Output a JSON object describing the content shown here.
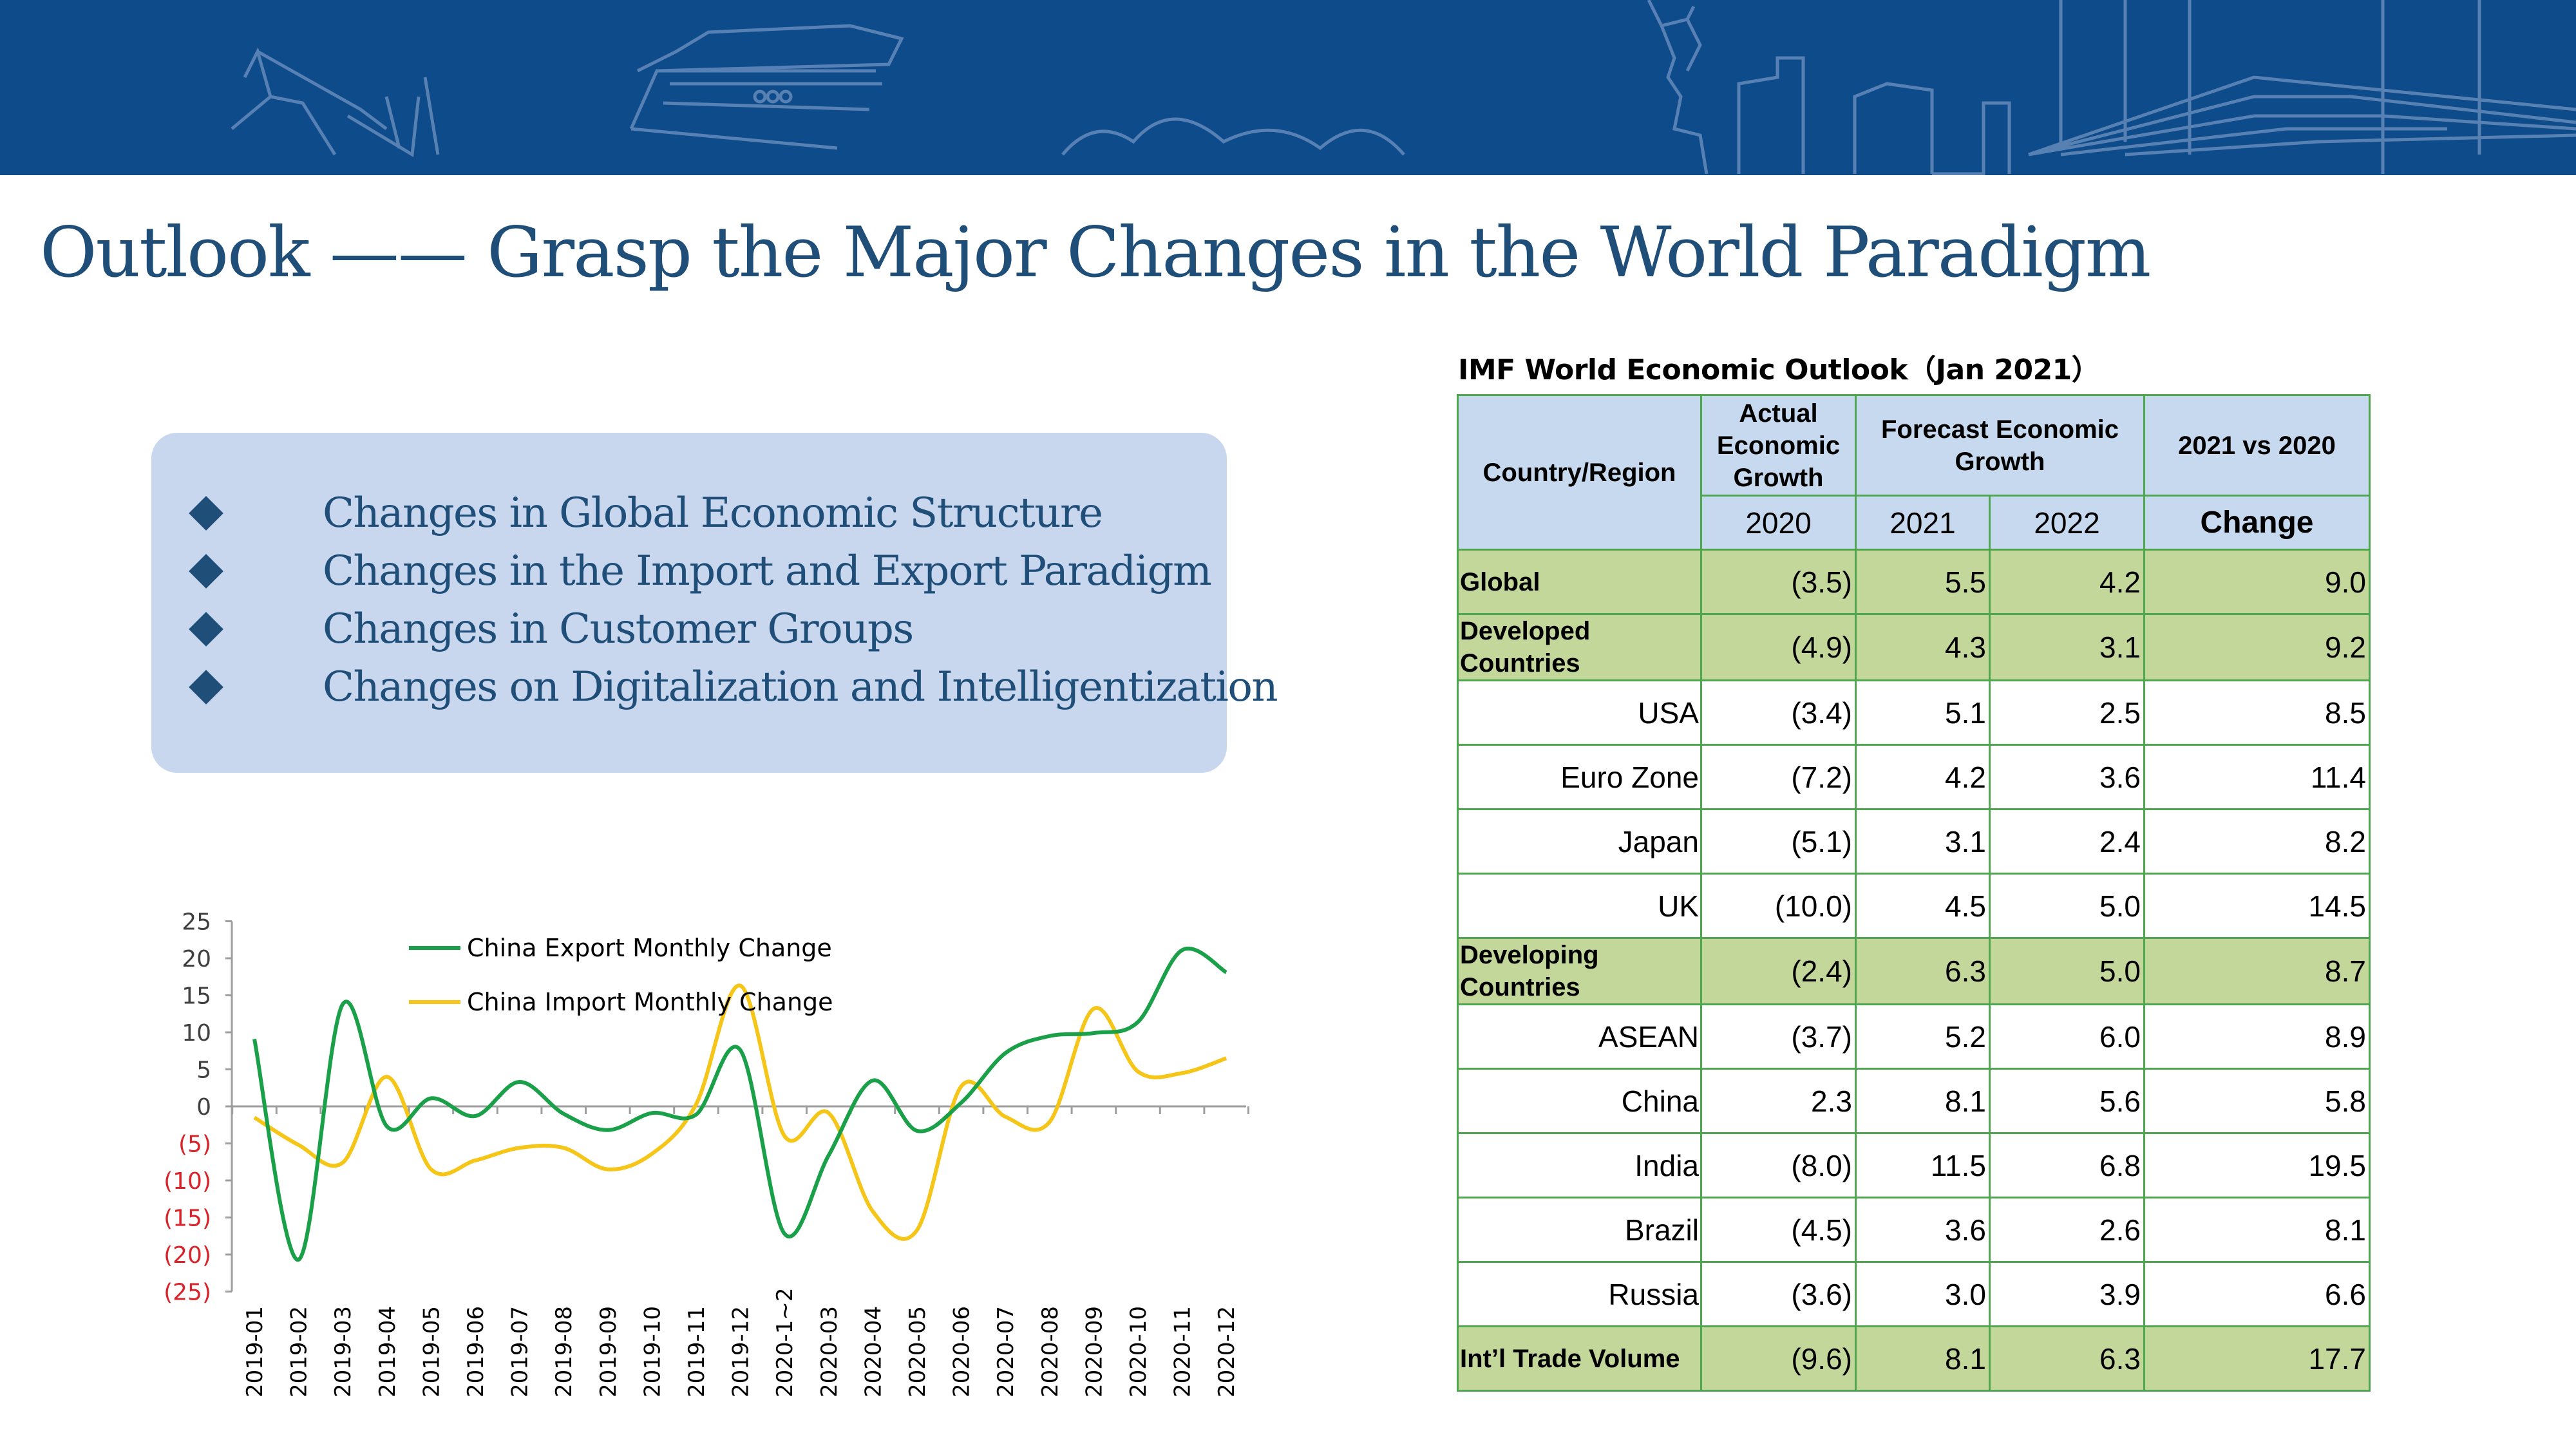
{
  "title": "Outlook —— Grasp the Major Changes in the World Paradigm",
  "bullets": [
    "Changes in Global Economic Structure",
    "Changes in the Import and Export Paradigm",
    "Changes in Customer Groups",
    "Changes on Digitalization and Intelligentization"
  ],
  "colors": {
    "banner": "#0e4b8a",
    "title": "#1f4e79",
    "table_header": "#c6d9ef",
    "table_group": "#c4d79b",
    "table_border": "#4ea64e",
    "export_line": "#1aa049",
    "import_line": "#f5c518",
    "negative_tick": "#d9232a"
  },
  "table": {
    "title": "IMF World Economic Outlook（Jan 2021）",
    "headers": {
      "country": "Country/Region",
      "actual": "Actual Economic Growth",
      "forecast": "Forecast Economic Growth",
      "vs": "2021 vs 2020",
      "y2020": "2020",
      "y2021": "2021",
      "y2022": "2022",
      "change": "Change"
    },
    "rows": [
      {
        "name": "Global",
        "v2020": "(3.5)",
        "v2021": "5.5",
        "v2022": "4.2",
        "change": "9.0",
        "group": true
      },
      {
        "name": "Developed Countries",
        "v2020": "(4.9)",
        "v2021": "4.3",
        "v2022": "3.1",
        "change": "9.2",
        "group": true
      },
      {
        "name": "USA",
        "v2020": "(3.4)",
        "v2021": "5.1",
        "v2022": "2.5",
        "change": "8.5",
        "group": false
      },
      {
        "name": "Euro Zone",
        "v2020": "(7.2)",
        "v2021": "4.2",
        "v2022": "3.6",
        "change": "11.4",
        "group": false
      },
      {
        "name": "Japan",
        "v2020": "(5.1)",
        "v2021": "3.1",
        "v2022": "2.4",
        "change": "8.2",
        "group": false
      },
      {
        "name": "UK",
        "v2020": "(10.0)",
        "v2021": "4.5",
        "v2022": "5.0",
        "change": "14.5",
        "group": false
      },
      {
        "name": "Developing Countries",
        "v2020": "(2.4)",
        "v2021": "6.3",
        "v2022": "5.0",
        "change": "8.7",
        "group": true
      },
      {
        "name": "ASEAN",
        "v2020": "(3.7)",
        "v2021": "5.2",
        "v2022": "6.0",
        "change": "8.9",
        "group": false
      },
      {
        "name": "China",
        "v2020": "2.3",
        "v2021": "8.1",
        "v2022": "5.6",
        "change": "5.8",
        "group": false
      },
      {
        "name": "India",
        "v2020": "(8.0)",
        "v2021": "11.5",
        "v2022": "6.8",
        "change": "19.5",
        "group": false
      },
      {
        "name": "Brazil",
        "v2020": "(4.5)",
        "v2021": "3.6",
        "v2022": "2.6",
        "change": "8.1",
        "group": false
      },
      {
        "name": "Russia",
        "v2020": "(3.6)",
        "v2021": "3.0",
        "v2022": "3.9",
        "change": "6.6",
        "group": false
      },
      {
        "name": "Int’l Trade Volume",
        "v2020": "(9.6)",
        "v2021": "8.1",
        "v2022": "6.3",
        "change": "17.7",
        "group": true
      }
    ]
  },
  "chart_data": {
    "type": "line",
    "categories": [
      "2019-01",
      "2019-02",
      "2019-03",
      "2019-04",
      "2019-05",
      "2019-06",
      "2019-07",
      "2019-08",
      "2019-09",
      "2019-10",
      "2019-11",
      "2019-12",
      "2020-1~2",
      "2020-03",
      "2020-04",
      "2020-05",
      "2020-06",
      "2020-07",
      "2020-08",
      "2020-09",
      "2020-10",
      "2020-11",
      "2020-12"
    ],
    "series": [
      {
        "name": "China Export Monthly Change",
        "values": [
          9.1,
          -20.7,
          13.8,
          -2.7,
          1.1,
          -1.3,
          3.3,
          -1.0,
          -3.2,
          -0.9,
          -1.1,
          7.6,
          -17.2,
          -6.6,
          3.5,
          -3.3,
          0.5,
          7.2,
          9.5,
          9.9,
          11.4,
          21.1,
          18.1
        ]
      },
      {
        "name": "China Import Monthly Change",
        "values": [
          -1.5,
          -5.2,
          -7.6,
          4.0,
          -8.5,
          -7.3,
          -5.6,
          -5.6,
          -8.5,
          -6.4,
          0.3,
          16.3,
          -4.0,
          -0.9,
          -14.2,
          -16.7,
          2.7,
          -1.4,
          -2.1,
          13.2,
          4.7,
          4.5,
          6.5
        ]
      }
    ],
    "yticks": [
      25,
      20,
      15,
      10,
      5,
      0,
      -5,
      -10,
      -15,
      -20,
      -25
    ],
    "ytick_labels": [
      "25",
      "20",
      "15",
      "10",
      "5",
      "0",
      "(5)",
      "(10)",
      "(15)",
      "(20)",
      "(25)"
    ],
    "ylim": [
      -25,
      25
    ],
    "legend_position": "top-left"
  }
}
